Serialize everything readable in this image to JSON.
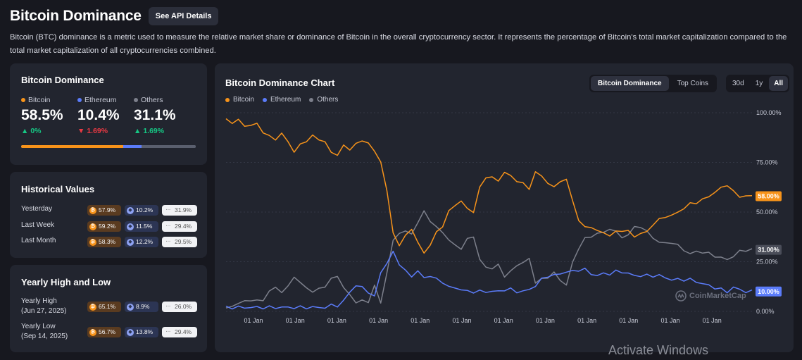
{
  "header": {
    "title": "Bitcoin Dominance",
    "api_button": "See API Details"
  },
  "description": "Bitcoin (BTC) dominance is a metric used to measure the relative market share or dominance of Bitcoin in the overall cryptocurrency sector. It represents the percentage of Bitcoin's total market capitalization compared to the total market capitalization of all cryptocurrencies combined.",
  "colors": {
    "bitcoin": "#f7931a",
    "ethereum": "#5b7cfa",
    "others": "#7d808c",
    "up": "#16c784",
    "down": "#ea3943"
  },
  "dominance": {
    "title": "Bitcoin Dominance",
    "items": [
      {
        "name": "Bitcoin",
        "value": "58.5%",
        "change": "0%",
        "dir": "up",
        "share": 58.5
      },
      {
        "name": "Ethereum",
        "value": "10.4%",
        "change": "1.69%",
        "dir": "down",
        "share": 10.4
      },
      {
        "name": "Others",
        "value": "31.1%",
        "change": "1.69%",
        "dir": "up",
        "share": 31.1
      }
    ]
  },
  "historical": {
    "title": "Historical Values",
    "rows": [
      {
        "label": "Yesterday",
        "btc": "57.9%",
        "eth": "10.2%",
        "oth": "31.9%"
      },
      {
        "label": "Last Week",
        "btc": "59.2%",
        "eth": "11.5%",
        "oth": "29.4%"
      },
      {
        "label": "Last Month",
        "btc": "58.3%",
        "eth": "12.2%",
        "oth": "29.5%"
      }
    ]
  },
  "yearly": {
    "title": "Yearly High and Low",
    "rows": [
      {
        "label": "Yearly High",
        "sub": "(Jun 27, 2025)",
        "btc": "65.1%",
        "eth": "8.9%",
        "oth": "26.0%"
      },
      {
        "label": "Yearly Low",
        "sub": "(Sep 14, 2025)",
        "btc": "56.7%",
        "eth": "13.8%",
        "oth": "29.4%"
      }
    ]
  },
  "chart_panel": {
    "title": "Bitcoin Dominance Chart",
    "tabs": [
      "Bitcoin Dominance",
      "Top Coins"
    ],
    "ranges": [
      "30d",
      "1y",
      "All"
    ],
    "watermark": "CoinMarketCap"
  },
  "chart_data": {
    "type": "line",
    "title": "Bitcoin Dominance Chart",
    "legend": [
      "Bitcoin",
      "Ethereum",
      "Others"
    ],
    "ylim": [
      0,
      100
    ],
    "yticks": [
      "100.00%",
      "75.00%",
      "50.00%",
      "25.00%",
      "0.00%"
    ],
    "xticks": [
      "01 Jan",
      "01 Jan",
      "01 Jan",
      "01 Jan",
      "01 Jan",
      "01 Jan",
      "01 Jan",
      "01 Jan",
      "01 Jan",
      "01 Jan",
      "01 Jan",
      "01 Jan"
    ],
    "last_labels": {
      "bitcoin": "58.00%",
      "others": "31.00%",
      "ethereum": "10.00%"
    },
    "series": [
      {
        "name": "Bitcoin",
        "values": [
          97,
          95,
          96,
          94,
          93,
          95,
          90,
          88,
          87,
          89,
          86,
          80,
          84,
          86,
          88,
          87,
          85,
          80,
          79,
          83,
          82,
          84,
          86,
          85,
          80,
          76,
          60,
          40,
          33,
          38,
          42,
          34,
          30,
          33,
          40,
          43,
          50,
          54,
          55,
          52,
          50,
          62,
          68,
          67,
          66,
          70,
          68,
          66,
          64,
          62,
          70,
          68,
          65,
          62,
          66,
          66,
          56,
          46,
          42,
          43,
          40,
          40,
          38,
          40,
          41,
          40,
          38,
          39,
          40,
          44,
          46,
          48,
          48,
          50,
          52,
          54,
          55,
          56,
          58,
          60,
          62,
          64,
          60,
          58,
          58,
          58
        ]
      },
      {
        "name": "Ethereum",
        "values": [
          2,
          2,
          2,
          2,
          2,
          2,
          2,
          2,
          2,
          2,
          2,
          2,
          2,
          2,
          2,
          2,
          2,
          3,
          3,
          5,
          10,
          13,
          12,
          10,
          7,
          20,
          24,
          30,
          24,
          20,
          18,
          20,
          17,
          18,
          16,
          15,
          12,
          12,
          11,
          10,
          10,
          10,
          10,
          10,
          10,
          11,
          11,
          10,
          10,
          11,
          13,
          16,
          18,
          18,
          19,
          20,
          20,
          21,
          21,
          19,
          18,
          19,
          19,
          20,
          20,
          19,
          18,
          18,
          18,
          18,
          18,
          17,
          16,
          16,
          16,
          16,
          15,
          14,
          13,
          12,
          11,
          10,
          12,
          11,
          10,
          10
        ]
      },
      {
        "name": "Others",
        "values": [
          1,
          3,
          4,
          5,
          6,
          5,
          6,
          10,
          12,
          10,
          12,
          18,
          14,
          12,
          10,
          11,
          13,
          16,
          18,
          12,
          8,
          5,
          5,
          5,
          13,
          4,
          20,
          35,
          40,
          40,
          39,
          45,
          50,
          46,
          42,
          40,
          36,
          33,
          32,
          36,
          38,
          26,
          22,
          22,
          23,
          18,
          20,
          23,
          25,
          26,
          15,
          16,
          17,
          20,
          15,
          14,
          24,
          32,
          37,
          37,
          40,
          39,
          42,
          40,
          37,
          39,
          42,
          43,
          40,
          37,
          35,
          34,
          35,
          33,
          31,
          29,
          30,
          30,
          29,
          28,
          27,
          26,
          28,
          30,
          31,
          31
        ]
      }
    ]
  },
  "overlay": {
    "activate": "Activate Windows"
  }
}
